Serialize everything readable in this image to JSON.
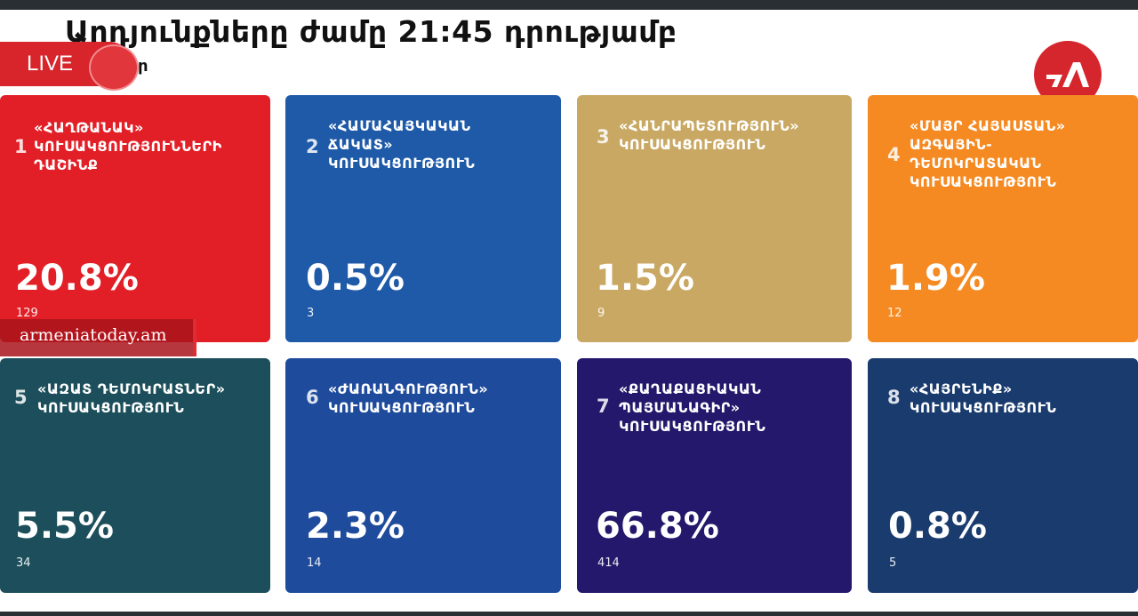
{
  "header": {
    "title": "Արդյունքները ժամը 21:45 դրությամբ",
    "live_label": "LIVE",
    "live_tail": "ր"
  },
  "logo": {
    "icon": "tl-logo-icon",
    "color": "#d6262d"
  },
  "watermark": {
    "text": "armeniatoday.am"
  },
  "cards": [
    {
      "num": "1",
      "name": "«ՀԱՂԹԱՆԱԿ»\nԿՈՒՍԱԿՑՈՒԹՅՈՒՆՆԵՐԻ\nԴԱՇԻՆՔ",
      "percent": "20.8%",
      "seats": "129",
      "color": "#e21f26"
    },
    {
      "num": "2",
      "name": "«ՀԱՄԱՀԱՅԿԱԿԱՆ\nՃԱԿԱՏ»\nԿՈՒՍԱԿՑՈՒԹՅՈՒՆ",
      "percent": "0.5%",
      "seats": "3",
      "color": "#1e5aa8"
    },
    {
      "num": "3",
      "name": "«ՀԱՆՐԱՊԵՏՈՒԹՅՈՒՆ»\nԿՈՒՍԱԿՑՈՒԹՅՈՒՆ",
      "percent": "1.5%",
      "seats": "9",
      "color": "#c9a864"
    },
    {
      "num": "4",
      "name": "«ՄԱՅՐ ՀԱՅԱՍՏԱՆ»\nԱԶԳԱՅԻՆ-\nԴԵՄՈԿՐԱՏԱԿԱՆ\nԿՈՒՍԱԿՑՈՒԹՅՈՒՆ",
      "percent": "1.9%",
      "seats": "12",
      "color": "#f58a22"
    },
    {
      "num": "5",
      "name": "«ԱԶԱՏ ԴԵՄՈԿՐԱՏՆԵՐ»\nԿՈՒՍԱԿՑՈՒԹՅՈՒՆ",
      "percent": "5.5%",
      "seats": "34",
      "color": "#1c4f5b"
    },
    {
      "num": "6",
      "name": "«ԺԱՌԱՆԳՈՒԹՅՈՒՆ»\nԿՈՒՍԱԿՑՈՒԹՅՈՒՆ",
      "percent": "2.3%",
      "seats": "14",
      "color": "#1f4b9c"
    },
    {
      "num": "7",
      "name": "«ՔԱՂԱՔԱՑԻԱԿԱՆ\nՊԱՅՄԱՆԱԳԻՐ»\nԿՈՒՍԱԿՑՈՒԹՅՈՒՆ",
      "percent": "66.8%",
      "seats": "414",
      "color": "#23186b"
    },
    {
      "num": "8",
      "name": "«ՀԱՅՐԵՆԻՔ»\nԿՈՒՍԱԿՑՈՒԹՅՈՒՆ",
      "percent": "0.8%",
      "seats": "5",
      "color": "#1a3b6e"
    }
  ]
}
